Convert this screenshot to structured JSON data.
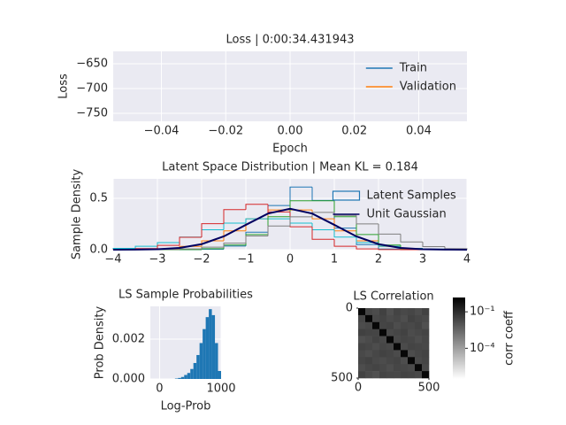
{
  "chart_data": [
    {
      "type": "line",
      "title": "Loss | 0:00:34.431943",
      "xlabel": "Epoch",
      "ylabel": "Loss",
      "x": [],
      "series": [
        {
          "name": "Train",
          "color": "#1f77b4",
          "values": []
        },
        {
          "name": "Validation",
          "color": "#ff7f0e",
          "values": []
        }
      ],
      "xlim": [
        -0.055,
        0.055
      ],
      "xticks": [
        {
          "value": -0.04,
          "label": "−0.04"
        },
        {
          "value": -0.02,
          "label": "−0.02"
        },
        {
          "value": 0,
          "label": "0.00"
        },
        {
          "value": 0.02,
          "label": "0.02"
        },
        {
          "value": 0.04,
          "label": "0.04"
        }
      ],
      "ylim": [
        -766,
        -625
      ],
      "yticks": [
        {
          "value": -650,
          "label": "−650"
        },
        {
          "value": -700,
          "label": "−700"
        },
        {
          "value": -750,
          "label": "−750"
        }
      ],
      "grid": true,
      "legend": "upper right"
    },
    {
      "type": "histogram",
      "histtype": "step",
      "title": "Latent Space Distribution | Mean KL = 0.184",
      "ylabel": "Sample Density",
      "bins": [
        -4,
        -3.5,
        -3,
        -2.5,
        -2,
        -1.5,
        -1,
        -0.5,
        0,
        0.5,
        1,
        1.5,
        2,
        2.5,
        3,
        3.5,
        4
      ],
      "series": [
        {
          "name": "Latent Samples",
          "color": "#1f77b4",
          "colors": [
            "#1f77b4",
            "#ff7f0e",
            "#17becf",
            "#2ca02c",
            "#d62728",
            "#7f7f7f"
          ],
          "values": [
            [
              0,
              0,
              0,
              0,
              0.004,
              0.036,
              0.17,
              0.43,
              0.61,
              0.48,
              0.21,
              0.05,
              0.007,
              0.001,
              0,
              0
            ],
            [
              0.0004,
              0.002,
              0.009,
              0.032,
              0.086,
              0.183,
              0.301,
              0.387,
              0.387,
              0.301,
              0.183,
              0.086,
              0.032,
              0.009,
              0.002,
              0.0004
            ],
            [
              0.013,
              0.033,
              0.069,
              0.123,
              0.194,
              0.259,
              0.301,
              0.301,
              0.259,
              0.194,
              0.123,
              0.069,
              0.033,
              0.013,
              0.005,
              0.002
            ],
            [
              0,
              0,
              0,
              0.001,
              0.01,
              0.045,
              0.148,
              0.321,
              0.476,
              0.476,
              0.321,
              0.148,
              0.045,
              0.01,
              0.001,
              0
            ],
            [
              0.002,
              0.011,
              0.042,
              0.121,
              0.253,
              0.39,
              0.442,
              0.368,
              0.223,
              0.101,
              0.033,
              0.008,
              0.001,
              0,
              0,
              0
            ],
            [
              0,
              0,
              0.002,
              0.008,
              0.025,
              0.064,
              0.134,
              0.231,
              0.32,
              0.363,
              0.334,
              0.251,
              0.152,
              0.076,
              0.03,
              0.01
            ]
          ]
        }
      ],
      "lines": [
        {
          "name": "Unit Gaussian",
          "color": "#000060",
          "x": [
            -4,
            -3.5,
            -3,
            -2.5,
            -2,
            -1.5,
            -1,
            -0.5,
            0,
            0.5,
            1,
            1.5,
            2,
            2.5,
            3,
            3.5,
            4
          ],
          "values": [
            0.0001,
            0.0009,
            0.0044,
            0.0175,
            0.054,
            0.1295,
            0.242,
            0.3521,
            0.3989,
            0.3521,
            0.242,
            0.1295,
            0.054,
            0.0175,
            0.0044,
            0.0009,
            0.0001
          ]
        }
      ],
      "xlim": [
        -4,
        4
      ],
      "xticks": [
        {
          "value": -4,
          "label": "−4"
        },
        {
          "value": -3,
          "label": "−3"
        },
        {
          "value": -2,
          "label": "−2"
        },
        {
          "value": -1,
          "label": "−1"
        },
        0,
        1,
        2,
        3,
        4
      ],
      "ylim": [
        0,
        0.69
      ],
      "yticks": [
        {
          "value": 0,
          "label": "0.0"
        },
        {
          "value": 0.5,
          "label": "0.5"
        }
      ],
      "grid": true,
      "legend": "upper right"
    },
    {
      "type": "histogram",
      "histtype": "bar",
      "title": "LS Sample Probabilities",
      "xlabel": "Log-Prob",
      "ylabel": "Prob Density",
      "color": "#1f77b4",
      "bins": [
        250,
        300,
        350,
        400,
        450,
        500,
        550,
        600,
        650,
        700,
        750,
        800,
        850,
        900,
        950,
        1000
      ],
      "values": [
        2e-05,
        5e-05,
        0.0001,
        0.0002,
        0.0003,
        0.0005,
        0.0008,
        0.0012,
        0.0018,
        0.0025,
        0.0031,
        0.0035,
        0.0032,
        0.0018,
        0.0004
      ],
      "xlim": [
        -150,
        1000
      ],
      "xticks": [
        0,
        1000
      ],
      "ylim": [
        0,
        0.00364
      ],
      "yticks": [
        {
          "value": 0,
          "label": "0.000"
        },
        {
          "value": 0.002,
          "label": "0.002"
        }
      ],
      "grid": true
    },
    {
      "type": "heatmap",
      "title": "LS Correlation",
      "matrix": [
        [
          1,
          0.02,
          0.015,
          0.03,
          0.012,
          0.025,
          0.018,
          0.022,
          0.014,
          0.027
        ],
        [
          0.02,
          1,
          0.019,
          0.024,
          0.016,
          0.021,
          0.013,
          0.028,
          0.02,
          0.017
        ],
        [
          0.015,
          0.019,
          1,
          0.023,
          0.026,
          0.014,
          0.02,
          0.018,
          0.025,
          0.012
        ],
        [
          0.03,
          0.024,
          0.023,
          1,
          0.017,
          0.022,
          0.027,
          0.015,
          0.019,
          0.024
        ],
        [
          0.012,
          0.016,
          0.026,
          0.017,
          1,
          0.018,
          0.023,
          0.02,
          0.013,
          0.021
        ],
        [
          0.025,
          0.021,
          0.014,
          0.022,
          0.018,
          1,
          0.016,
          0.025,
          0.022,
          0.019
        ],
        [
          0.018,
          0.013,
          0.02,
          0.027,
          0.023,
          0.016,
          1,
          0.014,
          0.021,
          0.026
        ],
        [
          0.022,
          0.028,
          0.018,
          0.015,
          0.02,
          0.025,
          0.014,
          1,
          0.017,
          0.023
        ],
        [
          0.014,
          0.02,
          0.025,
          0.019,
          0.013,
          0.022,
          0.021,
          0.017,
          1,
          0.018
        ],
        [
          0.027,
          0.017,
          0.012,
          0.024,
          0.021,
          0.019,
          0.026,
          0.023,
          0.018,
          1
        ]
      ],
      "xlim": [
        0,
        500
      ],
      "xticks": [
        0,
        500
      ],
      "ylim": [
        500,
        0
      ],
      "yticks": [
        0,
        500
      ],
      "colorbar": {
        "label": "corr coeff",
        "log": true,
        "clim": [
          3e-07,
          1.5
        ],
        "ticks": [
          {
            "value": 0.1,
            "label": "10⁻¹"
          },
          {
            "value": 0.0001,
            "label": "10⁻⁴"
          }
        ]
      }
    }
  ]
}
